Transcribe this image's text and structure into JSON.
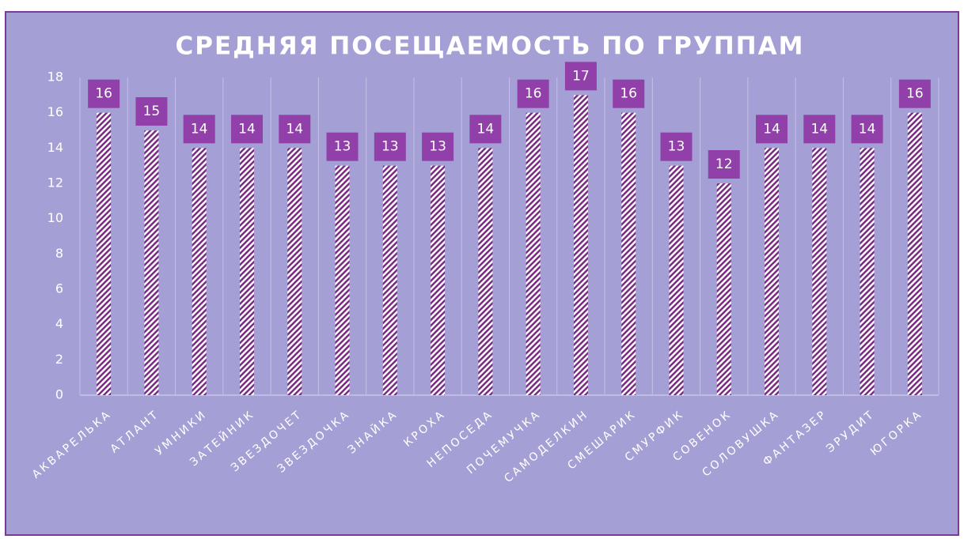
{
  "chart_data": {
    "type": "bar",
    "title": "СРЕДНЯЯ ПОСЕЩАЕМОСТЬ ПО ГРУППАМ",
    "categories": [
      "АКВАРЕЛЬКА",
      "АТЛАНТ",
      "УМНИКИ",
      "ЗАТЕЙНИК",
      "ЗВЕЗДОЧЕТ",
      "ЗВЕЗДОЧКА",
      "ЗНАЙКА",
      "КРОХА",
      "НЕПОСЕДА",
      "ПОЧЕМУЧКА",
      "САМОДЕЛКИН",
      "СМЕШАРИК",
      "СМУРФИК",
      "СОВЕНОК",
      "СОЛОВУШКА",
      "ФАНТАЗЕР",
      "ЭРУДИТ",
      "ЮГОРКА"
    ],
    "values": [
      16,
      15,
      14,
      14,
      14,
      13,
      13,
      13,
      14,
      16,
      17,
      16,
      13,
      12,
      14,
      14,
      14,
      16
    ],
    "color": "#7a2a82",
    "label_color": "#9040a8",
    "ylim": [
      0,
      18
    ],
    "yticks": [
      0,
      2,
      4,
      6,
      8,
      10,
      12,
      14,
      16,
      18
    ],
    "grid": "x"
  }
}
